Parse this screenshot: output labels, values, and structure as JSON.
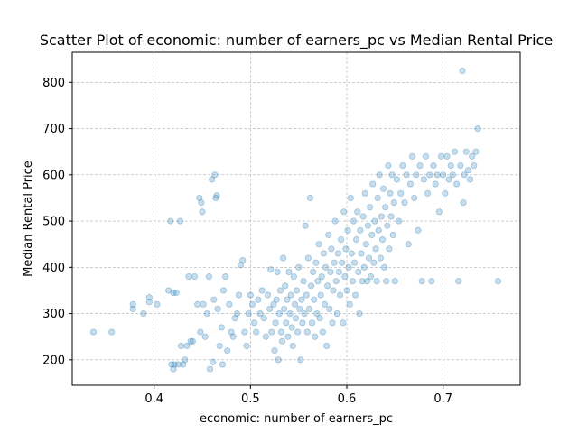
{
  "chart_data": {
    "type": "scatter",
    "title": "Scatter Plot of economic: number of earners_pc vs Median Rental Price",
    "xlabel": "economic: number of earners_pc",
    "ylabel": "Median Rental Price",
    "xlim": [
      0.315,
      0.78
    ],
    "ylim": [
      145,
      865
    ],
    "xticks": [
      0.4,
      0.5,
      0.6,
      0.7
    ],
    "xtick_labels": [
      "0.4",
      "0.5",
      "0.6",
      "0.7"
    ],
    "yticks": [
      200,
      300,
      400,
      500,
      600,
      700,
      800
    ],
    "ytick_labels": [
      "200",
      "300",
      "400",
      "500",
      "600",
      "700",
      "800"
    ],
    "grid": true,
    "grid_style": "dashed",
    "point_color": "#1f77b4",
    "point_alpha": 0.25,
    "series": [
      {
        "points": [
          [
            0.337,
            260
          ],
          [
            0.356,
            260
          ],
          [
            0.378,
            320
          ],
          [
            0.378,
            310
          ],
          [
            0.389,
            300
          ],
          [
            0.395,
            335
          ],
          [
            0.395,
            325
          ],
          [
            0.403,
            320
          ],
          [
            0.415,
            350
          ],
          [
            0.417,
            500
          ],
          [
            0.418,
            190
          ],
          [
            0.42,
            180
          ],
          [
            0.42,
            345
          ],
          [
            0.421,
            190
          ],
          [
            0.423,
            345
          ],
          [
            0.425,
            190
          ],
          [
            0.427,
            500
          ],
          [
            0.428,
            230
          ],
          [
            0.43,
            190
          ],
          [
            0.432,
            200
          ],
          [
            0.434,
            230
          ],
          [
            0.436,
            380
          ],
          [
            0.438,
            240
          ],
          [
            0.44,
            240
          ],
          [
            0.442,
            380
          ],
          [
            0.445,
            320
          ],
          [
            0.447,
            550
          ],
          [
            0.448,
            260
          ],
          [
            0.449,
            540
          ],
          [
            0.45,
            520
          ],
          [
            0.451,
            320
          ],
          [
            0.453,
            250
          ],
          [
            0.455,
            300
          ],
          [
            0.457,
            380
          ],
          [
            0.458,
            180
          ],
          [
            0.46,
            590
          ],
          [
            0.461,
            195
          ],
          [
            0.462,
            330
          ],
          [
            0.463,
            600
          ],
          [
            0.464,
            550
          ],
          [
            0.465,
            555
          ],
          [
            0.466,
            310
          ],
          [
            0.468,
            230
          ],
          [
            0.47,
            270
          ],
          [
            0.471,
            190
          ],
          [
            0.472,
            350
          ],
          [
            0.474,
            380
          ],
          [
            0.476,
            220
          ],
          [
            0.478,
            320
          ],
          [
            0.48,
            260
          ],
          [
            0.482,
            250
          ],
          [
            0.484,
            290
          ],
          [
            0.486,
            300
          ],
          [
            0.488,
            340
          ],
          [
            0.49,
            405
          ],
          [
            0.492,
            415
          ],
          [
            0.494,
            260
          ],
          [
            0.496,
            230
          ],
          [
            0.498,
            300
          ],
          [
            0.5,
            340
          ],
          [
            0.502,
            320
          ],
          [
            0.504,
            280
          ],
          [
            0.506,
            260
          ],
          [
            0.508,
            330
          ],
          [
            0.51,
            300
          ],
          [
            0.512,
            350
          ],
          [
            0.514,
            290
          ],
          [
            0.516,
            250
          ],
          [
            0.518,
            340
          ],
          [
            0.52,
            310
          ],
          [
            0.521,
            395
          ],
          [
            0.522,
            260
          ],
          [
            0.524,
            320
          ],
          [
            0.525,
            220
          ],
          [
            0.526,
            280
          ],
          [
            0.527,
            330
          ],
          [
            0.528,
            390
          ],
          [
            0.529,
            200
          ],
          [
            0.53,
            300
          ],
          [
            0.531,
            350
          ],
          [
            0.532,
            260
          ],
          [
            0.533,
            240
          ],
          [
            0.534,
            420
          ],
          [
            0.535,
            310
          ],
          [
            0.536,
            360
          ],
          [
            0.537,
            280
          ],
          [
            0.538,
            330
          ],
          [
            0.539,
            250
          ],
          [
            0.54,
            390
          ],
          [
            0.541,
            300
          ],
          [
            0.542,
            340
          ],
          [
            0.543,
            270
          ],
          [
            0.544,
            230
          ],
          [
            0.545,
            380
          ],
          [
            0.546,
            320
          ],
          [
            0.547,
            290
          ],
          [
            0.548,
            350
          ],
          [
            0.549,
            260
          ],
          [
            0.55,
            400
          ],
          [
            0.551,
            310
          ],
          [
            0.552,
            200
          ],
          [
            0.553,
            330
          ],
          [
            0.554,
            280
          ],
          [
            0.555,
            370
          ],
          [
            0.556,
            300
          ],
          [
            0.557,
            490
          ],
          [
            0.558,
            340
          ],
          [
            0.559,
            260
          ],
          [
            0.56,
            420
          ],
          [
            0.561,
            310
          ],
          [
            0.562,
            550
          ],
          [
            0.563,
            360
          ],
          [
            0.564,
            280
          ],
          [
            0.565,
            390
          ],
          [
            0.566,
            330
          ],
          [
            0.567,
            250
          ],
          [
            0.568,
            410
          ],
          [
            0.569,
            300
          ],
          [
            0.57,
            370
          ],
          [
            0.571,
            450
          ],
          [
            0.572,
            290
          ],
          [
            0.573,
            340
          ],
          [
            0.574,
            380
          ],
          [
            0.575,
            260
          ],
          [
            0.576,
            430
          ],
          [
            0.577,
            320
          ],
          [
            0.578,
            400
          ],
          [
            0.579,
            230
          ],
          [
            0.58,
            360
          ],
          [
            0.581,
            470
          ],
          [
            0.582,
            310
          ],
          [
            0.583,
            390
          ],
          [
            0.584,
            440
          ],
          [
            0.585,
            280
          ],
          [
            0.586,
            350
          ],
          [
            0.587,
            410
          ],
          [
            0.588,
            500
          ],
          [
            0.589,
            370
          ],
          [
            0.59,
            300
          ],
          [
            0.591,
            430
          ],
          [
            0.592,
            390
          ],
          [
            0.593,
            340
          ],
          [
            0.594,
            460
          ],
          [
            0.595,
            410
          ],
          [
            0.596,
            280
          ],
          [
            0.597,
            520
          ],
          [
            0.598,
            380
          ],
          [
            0.599,
            440
          ],
          [
            0.6,
            350
          ],
          [
            0.601,
            480
          ],
          [
            0.602,
            400
          ],
          [
            0.603,
            320
          ],
          [
            0.604,
            550
          ],
          [
            0.605,
            430
          ],
          [
            0.606,
            370
          ],
          [
            0.607,
            500
          ],
          [
            0.608,
            410
          ],
          [
            0.609,
            340
          ],
          [
            0.61,
            460
          ],
          [
            0.611,
            520
          ],
          [
            0.612,
            390
          ],
          [
            0.613,
            300
          ],
          [
            0.614,
            480
          ],
          [
            0.615,
            430
          ],
          [
            0.616,
            370
          ],
          [
            0.617,
            510
          ],
          [
            0.618,
            400
          ],
          [
            0.619,
            560
          ],
          [
            0.62,
            450
          ],
          [
            0.621,
            370
          ],
          [
            0.622,
            490
          ],
          [
            0.623,
            420
          ],
          [
            0.624,
            530
          ],
          [
            0.625,
            380
          ],
          [
            0.626,
            470
          ],
          [
            0.627,
            580
          ],
          [
            0.628,
            410
          ],
          [
            0.629,
            500
          ],
          [
            0.63,
            440
          ],
          [
            0.631,
            370
          ],
          [
            0.632,
            550
          ],
          [
            0.633,
            480
          ],
          [
            0.634,
            600
          ],
          [
            0.635,
            420
          ],
          [
            0.636,
            510
          ],
          [
            0.637,
            460
          ],
          [
            0.638,
            570
          ],
          [
            0.639,
            400
          ],
          [
            0.64,
            530
          ],
          [
            0.641,
            370
          ],
          [
            0.642,
            490
          ],
          [
            0.643,
            620
          ],
          [
            0.644,
            440
          ],
          [
            0.645,
            560
          ],
          [
            0.646,
            510
          ],
          [
            0.647,
            600
          ],
          [
            0.648,
            470
          ],
          [
            0.649,
            540
          ],
          [
            0.65,
            370
          ],
          [
            0.652,
            590
          ],
          [
            0.654,
            500
          ],
          [
            0.656,
            560
          ],
          [
            0.658,
            620
          ],
          [
            0.66,
            540
          ],
          [
            0.662,
            600
          ],
          [
            0.664,
            450
          ],
          [
            0.666,
            580
          ],
          [
            0.668,
            640
          ],
          [
            0.67,
            550
          ],
          [
            0.672,
            600
          ],
          [
            0.674,
            480
          ],
          [
            0.676,
            620
          ],
          [
            0.678,
            370
          ],
          [
            0.68,
            590
          ],
          [
            0.682,
            640
          ],
          [
            0.684,
            560
          ],
          [
            0.686,
            600
          ],
          [
            0.688,
            370
          ],
          [
            0.69,
            620
          ],
          [
            0.692,
            580
          ],
          [
            0.694,
            600
          ],
          [
            0.696,
            520
          ],
          [
            0.698,
            640
          ],
          [
            0.7,
            600
          ],
          [
            0.702,
            560
          ],
          [
            0.704,
            640
          ],
          [
            0.706,
            590
          ],
          [
            0.708,
            620
          ],
          [
            0.71,
            600
          ],
          [
            0.712,
            650
          ],
          [
            0.714,
            580
          ],
          [
            0.716,
            370
          ],
          [
            0.718,
            620
          ],
          [
            0.72,
            825
          ],
          [
            0.721,
            540
          ],
          [
            0.722,
            600
          ],
          [
            0.724,
            650
          ],
          [
            0.726,
            610
          ],
          [
            0.728,
            590
          ],
          [
            0.73,
            640
          ],
          [
            0.732,
            620
          ],
          [
            0.734,
            650
          ],
          [
            0.736,
            700
          ],
          [
            0.757,
            370
          ]
        ]
      }
    ]
  }
}
